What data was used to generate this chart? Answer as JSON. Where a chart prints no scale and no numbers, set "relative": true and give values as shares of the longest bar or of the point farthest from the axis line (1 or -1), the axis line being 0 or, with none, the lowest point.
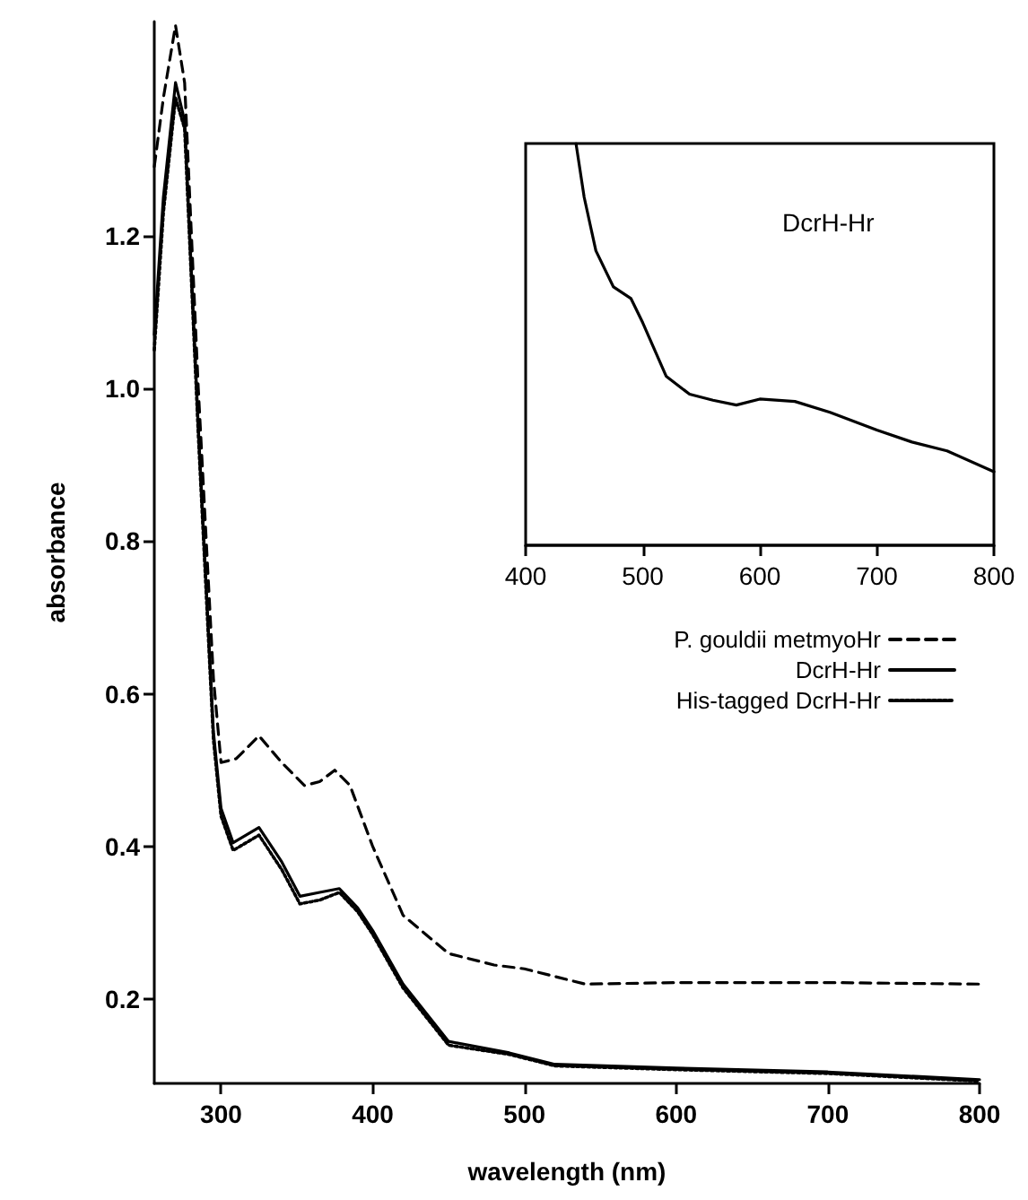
{
  "chart_data": [
    {
      "type": "line",
      "xlabel": "wavelength (nm)",
      "ylabel": "absorbance",
      "xlim": [
        256,
        800
      ],
      "ylim": [
        0.09,
        1.48
      ],
      "xticks": [
        300,
        400,
        500,
        600,
        700,
        800
      ],
      "yticks": [
        0.2,
        0.4,
        0.6,
        0.8,
        {
          "value": 1,
          "label": "1.0"
        },
        1.2
      ],
      "grid": false,
      "legend": "right",
      "marker": "none",
      "series": [
        {
          "name": "P. gouldii metmyoHr",
          "color": "#000000",
          "line_style": "dashed",
          "x": [
            256,
            262,
            270,
            276,
            285,
            295,
            300,
            310,
            325,
            340,
            355,
            365,
            375,
            385,
            400,
            420,
            450,
            480,
            500,
            520,
            540,
            600,
            700,
            800
          ],
          "values": [
            1.29,
            1.38,
            1.475,
            1.4,
            1.0,
            0.62,
            0.51,
            0.515,
            0.545,
            0.51,
            0.48,
            0.485,
            0.5,
            0.48,
            0.4,
            0.31,
            0.26,
            0.245,
            0.24,
            0.23,
            0.22,
            0.222,
            0.222,
            0.22
          ]
        },
        {
          "name": "DcrH-Hr",
          "color": "#000000",
          "line_style": "solid",
          "x": [
            256,
            262,
            270,
            276,
            285,
            295,
            300,
            308,
            325,
            340,
            352,
            365,
            378,
            390,
            400,
            420,
            450,
            490,
            520,
            600,
            700,
            800
          ],
          "values": [
            1.07,
            1.25,
            1.4,
            1.35,
            0.95,
            0.55,
            0.45,
            0.405,
            0.425,
            0.38,
            0.335,
            0.34,
            0.345,
            0.32,
            0.29,
            0.22,
            0.145,
            0.13,
            0.115,
            0.11,
            0.105,
            0.095
          ]
        },
        {
          "name": "His-tagged DcrH-Hr",
          "color": "#000000",
          "line_style": "dotted",
          "x": [
            256,
            262,
            270,
            276,
            285,
            295,
            300,
            308,
            325,
            340,
            352,
            365,
            378,
            390,
            400,
            420,
            450,
            490,
            520,
            600,
            700,
            800
          ],
          "values": [
            1.05,
            1.23,
            1.38,
            1.34,
            0.94,
            0.54,
            0.44,
            0.395,
            0.415,
            0.37,
            0.325,
            0.33,
            0.34,
            0.315,
            0.285,
            0.215,
            0.14,
            0.128,
            0.113,
            0.108,
            0.103,
            0.093
          ]
        }
      ]
    },
    {
      "type": "line",
      "relative": true,
      "annotations": [
        "DcrH-Hr"
      ],
      "xlim": [
        400,
        800
      ],
      "xticks": [
        400,
        500,
        600,
        700,
        800
      ],
      "tick_labels": "x",
      "marker": "none",
      "series": [
        {
          "color": "#000000",
          "line_style": "solid",
          "x": [
            443,
            450,
            460,
            475,
            490,
            500,
            520,
            540,
            560,
            580,
            600,
            630,
            660,
            700,
            730,
            760,
            800
          ],
          "values": [
            1.0,
            0.866,
            0.733,
            0.643,
            0.614,
            0.554,
            0.421,
            0.376,
            0.361,
            0.349,
            0.364,
            0.358,
            0.331,
            0.287,
            0.257,
            0.235,
            0.183
          ]
        }
      ]
    }
  ]
}
